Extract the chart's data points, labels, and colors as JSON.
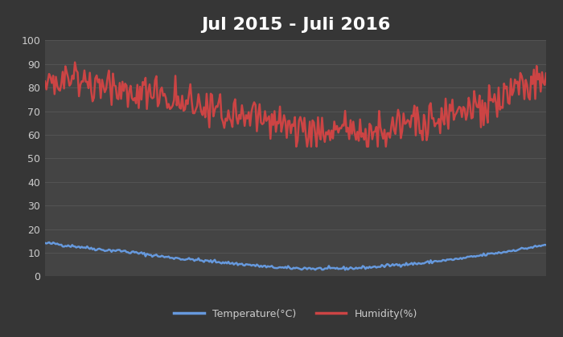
{
  "title": "Jul 2015 - Juli 2016",
  "title_color": "#ffffff",
  "title_fontsize": 16,
  "background_color": "#363636",
  "plot_bg_color": "#444444",
  "grid_color": "#585858",
  "ylim": [
    0,
    100
  ],
  "yticks": [
    0,
    10,
    20,
    30,
    40,
    50,
    60,
    70,
    80,
    90,
    100
  ],
  "temp_color": "#6699dd",
  "humidity_color": "#cc4444",
  "legend_text_color": "#cccccc",
  "temp_seed": 42,
  "humidity_seed": 7,
  "n_points": 370
}
